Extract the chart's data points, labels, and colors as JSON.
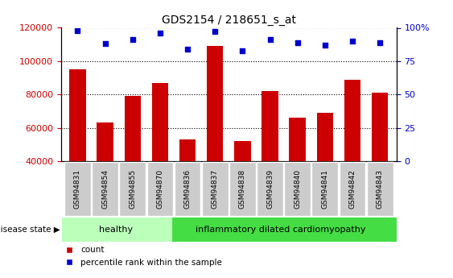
{
  "title": "GDS2154 / 218651_s_at",
  "samples": [
    "GSM94831",
    "GSM94854",
    "GSM94855",
    "GSM94870",
    "GSM94836",
    "GSM94837",
    "GSM94838",
    "GSM94839",
    "GSM94840",
    "GSM94841",
    "GSM94842",
    "GSM94843"
  ],
  "counts": [
    95000,
    63000,
    79000,
    87000,
    53000,
    109000,
    52000,
    82000,
    66000,
    69000,
    89000,
    81000
  ],
  "percentiles": [
    98,
    88,
    91,
    96,
    84,
    97,
    83,
    91,
    89,
    87,
    90,
    89
  ],
  "healthy_count": 4,
  "disease_groups": [
    "healthy",
    "inflammatory dilated cardiomyopathy"
  ],
  "bar_color": "#cc0000",
  "dot_color": "#0000cc",
  "ylim_left": [
    40000,
    120000
  ],
  "ylim_right": [
    0,
    100
  ],
  "yticks_left": [
    40000,
    60000,
    80000,
    100000,
    120000
  ],
  "yticks_right": [
    0,
    25,
    50,
    75,
    100
  ],
  "yticklabels_right": [
    "0",
    "25",
    "50",
    "75",
    "100%"
  ],
  "healthy_bg": "#bbffbb",
  "disease_bg": "#44dd44",
  "xlabel_bg": "#cccccc",
  "legend_count_label": "count",
  "legend_percentile_label": "percentile rank within the sample",
  "disease_state_label": "disease state"
}
